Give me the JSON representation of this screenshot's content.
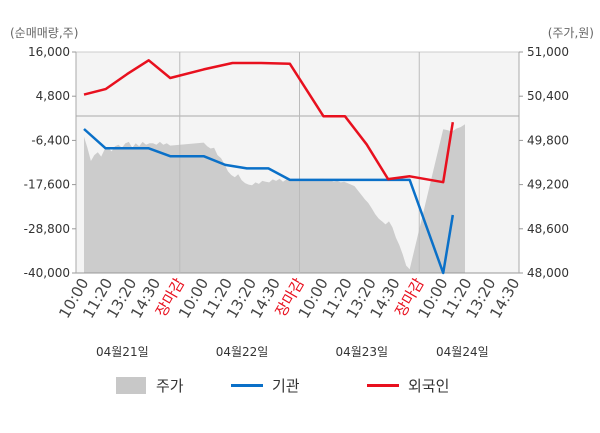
{
  "chart_data": {
    "type": "line",
    "left_axis": {
      "unit_label": "(순매매량,주)",
      "ylim": [
        -40000,
        16000
      ],
      "ticks": [
        16000,
        4800,
        -6400,
        -17600,
        -28800,
        -40000
      ],
      "tick_labels": [
        "16,000",
        "4,800",
        "-6,400",
        "-17,600",
        "-28,800",
        "-40,000"
      ]
    },
    "right_axis": {
      "unit_label": "(주가,원)",
      "ylim": [
        48000,
        51000
      ],
      "ticks": [
        51000,
        50400,
        49800,
        49200,
        48600,
        48000
      ],
      "tick_labels": [
        "51,000",
        "50,400",
        "49,800",
        "49,200",
        "48,600",
        "48,000"
      ]
    },
    "x_tick_labels": [
      {
        "text": "10:00",
        "close": false
      },
      {
        "text": "11:20",
        "close": false
      },
      {
        "text": "13:20",
        "close": false
      },
      {
        "text": "14:30",
        "close": false
      },
      {
        "text": "장마감",
        "close": true
      },
      {
        "text": "10:00",
        "close": false
      },
      {
        "text": "11:20",
        "close": false
      },
      {
        "text": "13:20",
        "close": false
      },
      {
        "text": "14:30",
        "close": false
      },
      {
        "text": "장마감",
        "close": true
      },
      {
        "text": "10:00",
        "close": false
      },
      {
        "text": "11:20",
        "close": false
      },
      {
        "text": "13:20",
        "close": false
      },
      {
        "text": "14:30",
        "close": false
      },
      {
        "text": "장마감",
        "close": true
      },
      {
        "text": "10:00",
        "close": false
      },
      {
        "text": "11:20",
        "close": false
      },
      {
        "text": "13:20",
        "close": false
      },
      {
        "text": "14:30",
        "close": false
      }
    ],
    "day_labels": [
      "04월21일",
      "04월22일",
      "04월23일",
      "04월24일"
    ],
    "series": [
      {
        "name": "주가",
        "kind": "area",
        "axis": "right",
        "color": "#cccccc",
        "values": [
          49850,
          49700,
          49520,
          49600,
          49640,
          49580,
          49680,
          49700,
          49650,
          49720,
          49740,
          49700,
          49760,
          49780,
          49700,
          49760,
          49720,
          49780,
          49740,
          49760,
          49760,
          49740,
          49780,
          49740,
          49760,
          49730,
          49770,
          49720,
          49690,
          49700,
          49600,
          49560,
          49480,
          49380,
          49330,
          49300,
          49340,
          49260,
          49220,
          49200,
          49190,
          49230,
          49210,
          49250,
          49240,
          49230,
          49270,
          49250,
          49280,
          49240,
          49270,
          49260,
          49280,
          49250,
          49260,
          49240,
          49250,
          49230,
          49240,
          49220,
          49200,
          49180,
          49120,
          49060,
          49000,
          48950,
          48880,
          48800,
          48740,
          48700,
          48660,
          48700,
          48620,
          48480,
          48380,
          48250,
          48100,
          48050,
          49950,
          49940,
          49920,
          49960,
          49980,
          50020
        ]
      },
      {
        "name": "기관",
        "kind": "line",
        "axis": "left",
        "color": "#0a70c8",
        "values": [
          -3500,
          -8400,
          -8400,
          -8400,
          -10400,
          -10400,
          -12600,
          -13500,
          -13500,
          -16400,
          -16400,
          -16400,
          -16400,
          -16400,
          -16400,
          -40000,
          -25300
        ]
      },
      {
        "name": "외국인",
        "kind": "line",
        "axis": "left",
        "color": "#e8101e",
        "values": [
          5200,
          6600,
          10400,
          13900,
          9400,
          11600,
          13200,
          13200,
          13000,
          -300,
          -300,
          -7400,
          -16200,
          -15500,
          -17000,
          -1800
        ]
      }
    ],
    "legend": {
      "position": "bottom",
      "entries": [
        "주가",
        "기관",
        "외국인"
      ]
    },
    "grid": false
  }
}
